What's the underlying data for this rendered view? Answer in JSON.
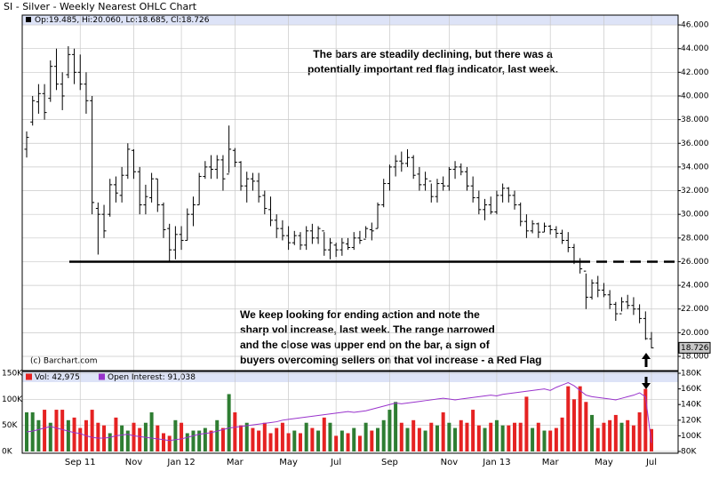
{
  "chart_data": {
    "type": "ohlc",
    "title": "SI - Silver - Weekly Nearest OHLC Chart",
    "header_text": "Op:19.485, Hi:20.060, Lo:18.685, Cl:18.726",
    "copyright": "(c) Barchart.com",
    "annotation_top": [
      "The bars are steadily declining, but there was a",
      "potentially important red flag indicator, last week."
    ],
    "annotation_bottom": [
      "We keep looking for ending action and note the",
      "sharp vol increase, last week.  The range narrowed",
      "and the close was upper end on the bar, a sign of",
      "buyers overcoming sellers on that vol increase - a Red Flag"
    ],
    "support_line": 26,
    "categories": [
      null,
      null,
      null,
      null,
      null,
      null,
      null,
      null,
      null,
      "Sep 11",
      null,
      null,
      null,
      null,
      null,
      null,
      null,
      null,
      "Nov",
      null,
      null,
      null,
      null,
      null,
      null,
      null,
      "Jan 12",
      null,
      null,
      null,
      null,
      null,
      null,
      null,
      null,
      "Mar",
      null,
      null,
      null,
      null,
      null,
      null,
      null,
      null,
      "May",
      null,
      null,
      null,
      null,
      null,
      null,
      null,
      "Jul",
      null,
      null,
      null,
      null,
      null,
      null,
      null,
      null,
      "Sep",
      null,
      null,
      null,
      null,
      null,
      null,
      null,
      null,
      null,
      "Nov",
      null,
      null,
      null,
      null,
      null,
      null,
      null,
      "Jan 13",
      null,
      null,
      null,
      null,
      null,
      null,
      null,
      null,
      "Mar",
      null,
      null,
      null,
      null,
      null,
      null,
      null,
      null,
      "May",
      null,
      null,
      null,
      null,
      null,
      null,
      null,
      "Jul"
    ],
    "open": [
      35.5,
      37.8,
      39.5,
      40.2,
      39.8,
      42.5,
      41,
      41.8,
      43.5,
      42,
      41,
      39.6,
      30.5,
      30,
      30,
      32.5,
      31.6,
      33.3,
      35.4,
      33.6,
      30.8,
      31.4,
      33,
      30.8,
      28.8,
      27,
      28.3,
      27.8,
      30,
      30.8,
      33.2,
      34,
      33.8,
      34.6,
      33.4,
      35.4,
      34.4,
      32.4,
      33,
      32.8,
      31.6,
      30.4,
      29.5,
      28.8,
      28.2,
      27.6,
      28.2,
      27.4,
      28.6,
      28,
      28.6,
      27,
      27.4,
      27,
      27.5,
      27.2,
      28,
      27.9,
      28.7,
      28.8,
      30.8,
      32.6,
      34,
      34.5,
      34.3,
      34.8,
      33.4,
      32.5,
      32.8,
      31.5,
      32.6,
      32.4,
      33.8,
      34,
      33.6,
      32.4,
      31.4,
      30.4,
      30.8,
      30.2,
      31.6,
      32.2,
      31.6,
      30.8,
      29.4,
      28.6,
      29.2,
      28.5,
      29,
      28.7,
      28.4,
      27.8,
      27.2,
      26,
      25.2,
      23,
      24.2,
      23.6,
      23.2,
      22.4,
      21.6,
      22.6,
      22.3,
      22,
      21.2,
      19.485
    ],
    "high": [
      37,
      40,
      41,
      41,
      43,
      44,
      42,
      44.2,
      44,
      43.5,
      42,
      40,
      31,
      30.8,
      33,
      33.2,
      34,
      36,
      35.5,
      34,
      32.5,
      33.5,
      33,
      31,
      29.2,
      29,
      29,
      30.5,
      31.5,
      33.5,
      34.5,
      35,
      35,
      35,
      37.5,
      35.6,
      34.5,
      33.6,
      33.5,
      33.5,
      32,
      31.5,
      30,
      29.5,
      29,
      28.6,
      28.5,
      29,
      29.2,
      29,
      28.5,
      28,
      27.6,
      28,
      28,
      28.5,
      28.6,
      29,
      29.3,
      31,
      33,
      34.2,
      35,
      35.3,
      35.5,
      35,
      34,
      33.6,
      32.6,
      33,
      33.2,
      34,
      34.5,
      34.3,
      34,
      33.2,
      32,
      31.3,
      31.5,
      32,
      32.6,
      32.3,
      32,
      31,
      30,
      29.5,
      29.3,
      29.3,
      29.1,
      29,
      28.7,
      28.5,
      27.5,
      26.3,
      25,
      24.5,
      24.8,
      24.2,
      23.6,
      22.6,
      23,
      23.2,
      23,
      22.4,
      21.8,
      20.06
    ],
    "low": [
      34.8,
      37.5,
      38.5,
      38,
      39.5,
      40.5,
      38.8,
      41.5,
      41,
      40.5,
      38.5,
      30,
      26.6,
      28,
      29.8,
      31,
      31,
      33,
      33,
      30,
      30,
      31,
      30.2,
      28,
      26,
      26.2,
      27,
      27.8,
      29,
      30.8,
      33,
      33,
      33,
      32,
      33.5,
      34,
      32,
      31,
      32,
      31,
      30,
      29,
      28,
      27.8,
      27,
      27.4,
      27,
      27,
      27.5,
      27.5,
      26.5,
      26.2,
      26.4,
      26.5,
      27,
      27,
      27.5,
      28,
      27.8,
      28.8,
      30.6,
      32,
      33.2,
      33.6,
      34,
      33,
      32,
      32,
      31,
      31,
      32,
      32,
      33,
      33.3,
      32,
      31,
      30,
      29.5,
      30,
      30,
      31,
      31,
      30.4,
      29,
      28,
      28.4,
      28,
      28.5,
      28.3,
      28,
      27.5,
      26.8,
      25.8,
      25,
      22,
      22.8,
      23,
      23,
      22,
      21,
      21.8,
      22,
      21.5,
      20.8,
      19.4,
      18.685
    ],
    "close": [
      36.5,
      39.6,
      40.2,
      38.6,
      42.5,
      41,
      40,
      43.5,
      42,
      41,
      39.6,
      31,
      30,
      28.6,
      32.5,
      31.8,
      33.3,
      35.5,
      33.6,
      30.8,
      31.5,
      33,
      30.8,
      28.7,
      27,
      28.3,
      27.8,
      30,
      30.8,
      33.2,
      34,
      33.8,
      34.6,
      33,
      35.5,
      34.4,
      32.4,
      33,
      32.8,
      31.5,
      30.5,
      29.5,
      28.8,
      28.2,
      27.6,
      28.2,
      27.4,
      28.6,
      28,
      28.8,
      27,
      27.6,
      27,
      27.6,
      27.2,
      28,
      27.8,
      28.8,
      28.6,
      30.8,
      32.6,
      34,
      34.5,
      34.3,
      34.8,
      33.3,
      32.5,
      33,
      31.5,
      32.6,
      32.4,
      33.8,
      34,
      33.6,
      32.4,
      31.4,
      30.4,
      30.8,
      30.2,
      31.6,
      32.2,
      31.6,
      30.8,
      29.4,
      28.6,
      29.2,
      28.5,
      29,
      28.7,
      28.4,
      27.8,
      27.2,
      26,
      25.4,
      23,
      24.2,
      23.6,
      23.2,
      22.4,
      21.6,
      22.6,
      22.3,
      22,
      21.2,
      19.5,
      18.726
    ],
    "color": "#000000",
    "ylim": [
      16.8,
      46.83
    ],
    "yticks": [
      {
        "value": 18,
        "label": "18.000"
      },
      {
        "value": 20,
        "label": "20.000"
      },
      {
        "value": 22,
        "label": "22.000"
      },
      {
        "value": 24,
        "label": "24.000"
      },
      {
        "value": 26,
        "label": "26.000"
      },
      {
        "value": 28,
        "label": "28.000"
      },
      {
        "value": 30,
        "label": "30.000"
      },
      {
        "value": 32,
        "label": "32.000"
      },
      {
        "value": 34,
        "label": "34.000"
      },
      {
        "value": 36,
        "label": "36.000"
      },
      {
        "value": 38,
        "label": "38.000"
      },
      {
        "value": 40,
        "label": "40.000"
      },
      {
        "value": 42,
        "label": "42.000"
      },
      {
        "value": 44,
        "label": "44.000"
      },
      {
        "value": 46,
        "label": "46.000"
      }
    ],
    "grid": true,
    "volume": {
      "label": "Vol: 42,975",
      "up_color": "#2e7d32",
      "down_color": "#e52222",
      "values": [
        75000,
        75000,
        60000,
        80000,
        55000,
        80000,
        80000,
        60000,
        65000,
        45000,
        60000,
        80000,
        55000,
        50000,
        35000,
        65000,
        50000,
        40000,
        55000,
        45000,
        55000,
        75000,
        50000,
        35000,
        30000,
        60000,
        55000,
        35000,
        40000,
        40000,
        45000,
        40000,
        60000,
        45000,
        110000,
        75000,
        50000,
        55000,
        45000,
        40000,
        55000,
        35000,
        45000,
        55000,
        35000,
        40000,
        35000,
        55000,
        45000,
        40000,
        65000,
        55000,
        30000,
        40000,
        35000,
        45000,
        30000,
        55000,
        40000,
        45000,
        60000,
        80000,
        95000,
        55000,
        45000,
        60000,
        45000,
        40000,
        55000,
        50000,
        75000,
        55000,
        45000,
        60000,
        55000,
        80000,
        50000,
        45000,
        55000,
        60000,
        50000,
        50000,
        55000,
        55000,
        105000,
        45000,
        55000,
        40000,
        40000,
        45000,
        65000,
        125000,
        100000,
        125000,
        95000,
        70000,
        45000,
        55000,
        60000,
        70000,
        55000,
        60000,
        50000,
        75000,
        120000,
        42975
      ],
      "ylim": [
        0,
        153400
      ],
      "yticks": [
        {
          "value": 0,
          "label": "0K"
        },
        {
          "value": 50000,
          "label": "50K"
        },
        {
          "value": 100000,
          "label": "100K"
        },
        {
          "value": 150000,
          "label": "150K"
        }
      ]
    },
    "open_interest": {
      "label": "Open Interest: 91,038",
      "color": "#9933cc",
      "axis": "y2",
      "values": [
        105000,
        106000,
        108000,
        110000,
        112000,
        110000,
        108000,
        106000,
        104000,
        103000,
        100000,
        98000,
        97000,
        97000,
        98000,
        100000,
        101000,
        102000,
        100000,
        99000,
        98000,
        97000,
        96000,
        95000,
        94000,
        95000,
        96000,
        98000,
        100000,
        102000,
        103000,
        104000,
        106000,
        108000,
        110000,
        111000,
        112000,
        113000,
        114000,
        115000,
        116000,
        117000,
        118000,
        120000,
        121000,
        122000,
        123000,
        124000,
        125000,
        126000,
        127000,
        128000,
        129000,
        130000,
        131000,
        130000,
        131000,
        132000,
        134000,
        136000,
        138000,
        140000,
        142000,
        141000,
        142000,
        143000,
        144000,
        145000,
        146000,
        147000,
        148000,
        147000,
        146000,
        147000,
        148000,
        149000,
        150000,
        151000,
        152000,
        151000,
        153000,
        154000,
        155000,
        156000,
        157000,
        158000,
        159000,
        160000,
        158000,
        162000,
        165000,
        168000,
        164000,
        158000,
        152000,
        150000,
        149000,
        148000,
        147000,
        146000,
        148000,
        150000,
        152000,
        155000,
        150000,
        91038
      ]
    },
    "y2lim": [
      80000,
      182300
    ],
    "y2ticks": [
      {
        "value": 80000,
        "label": "80K"
      },
      {
        "value": 100000,
        "label": "100K"
      },
      {
        "value": 120000,
        "label": "120K"
      },
      {
        "value": 140000,
        "label": "140K"
      },
      {
        "value": 160000,
        "label": "160K"
      },
      {
        "value": 180000,
        "label": "180K"
      }
    ]
  }
}
